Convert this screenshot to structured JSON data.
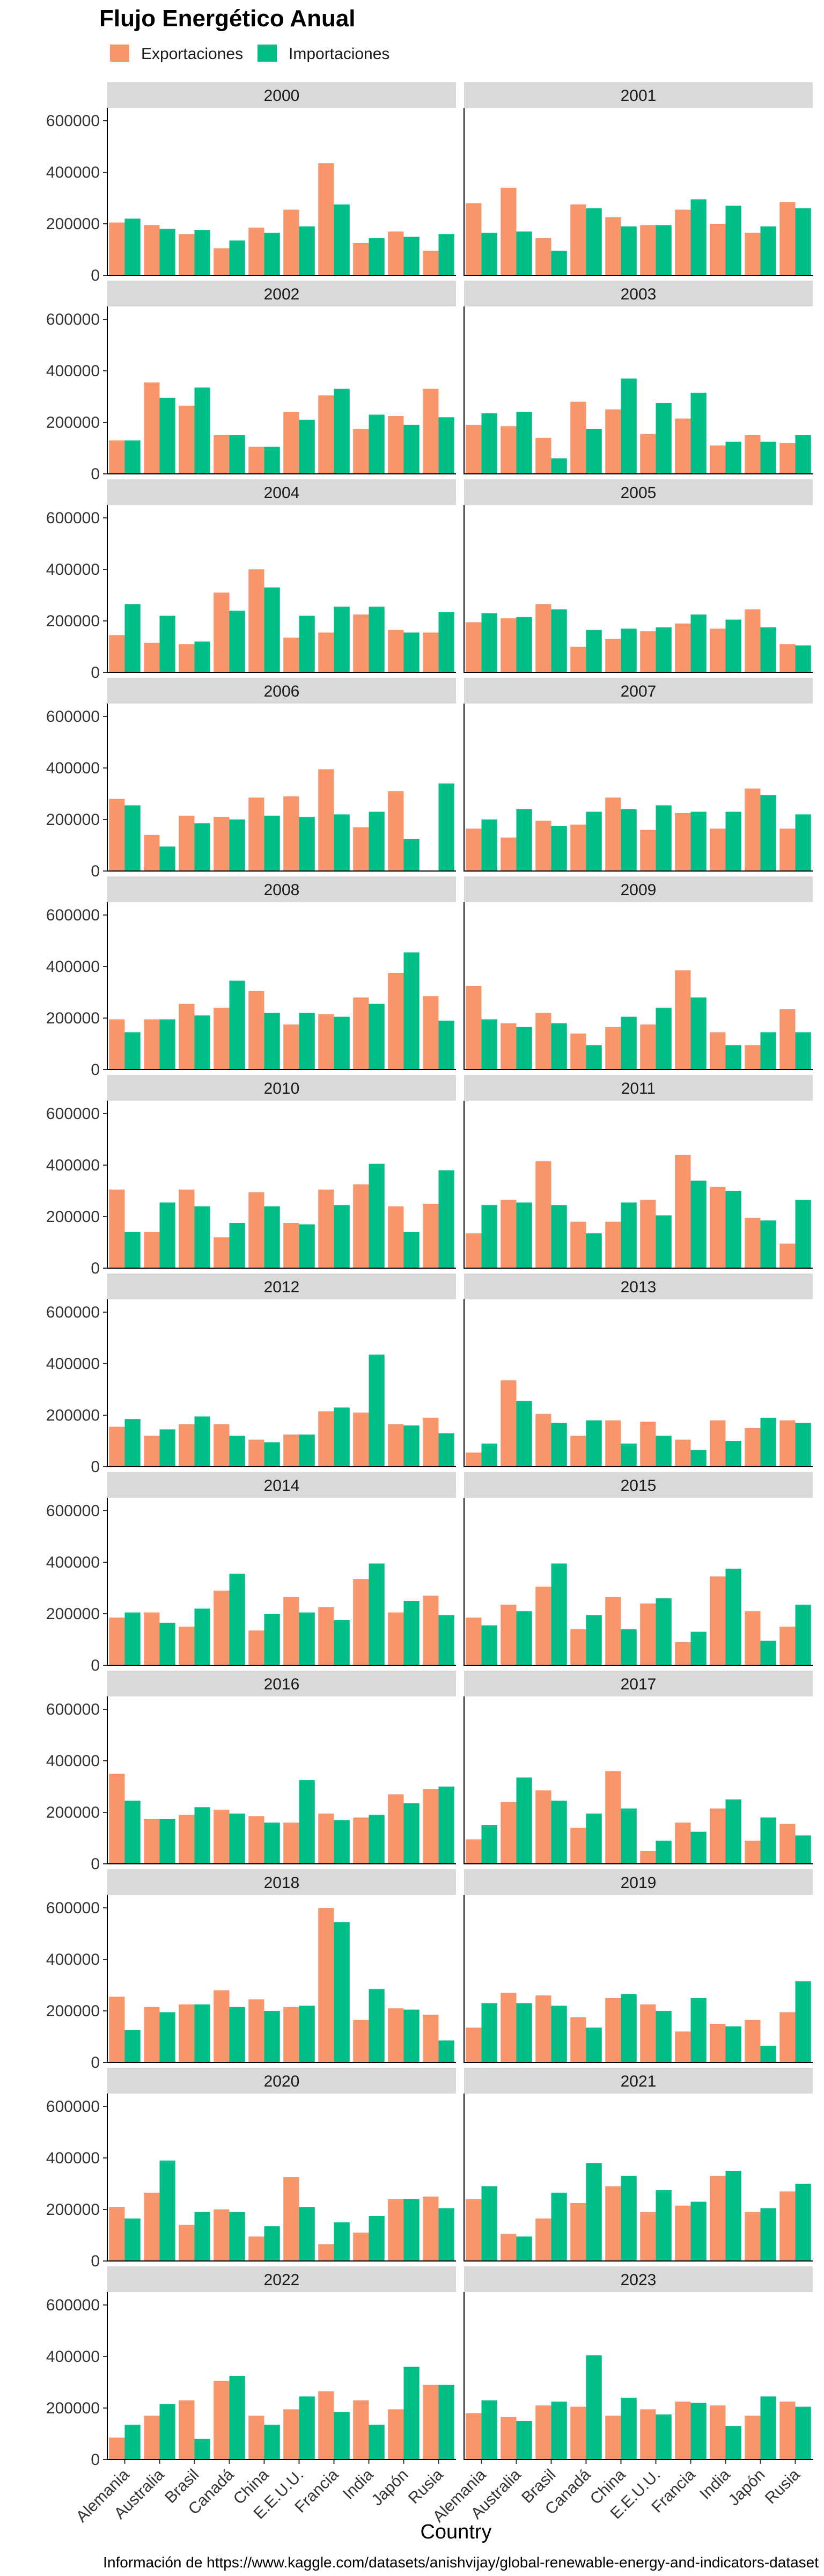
{
  "chart_data": {
    "type": "bar",
    "title": "Flujo Energético Anual",
    "xlabel": "Country",
    "ylabel": "",
    "caption": "Información de https://www.kaggle.com/datasets/anishvijay/global-renewable-energy-and-indicators-dataset",
    "categories": [
      "Alemania",
      "Australia",
      "Brasil",
      "Canadá",
      "China",
      "E.E.U.U.",
      "Francia",
      "India",
      "Japón",
      "Rusia"
    ],
    "ylim": [
      0,
      650000
    ],
    "yticks": [
      0,
      200000,
      400000,
      600000
    ],
    "ytick_labels": [
      "0",
      "200000",
      "400000",
      "600000"
    ],
    "legend": {
      "position": "top-left",
      "labels": [
        "Exportaciones",
        "Importaciones"
      ]
    },
    "colors": {
      "Exportaciones": "#f8956b",
      "Importaciones": "#00be88"
    },
    "grid": false,
    "facets": [
      {
        "label": "2000",
        "series": [
          {
            "name": "Exportaciones",
            "values": [
              205000,
              195000,
              160000,
              105000,
              185000,
              255000,
              435000,
              125000,
              170000,
              95000
            ]
          },
          {
            "name": "Importaciones",
            "values": [
              220000,
              180000,
              175000,
              135000,
              165000,
              190000,
              275000,
              145000,
              150000,
              160000
            ]
          }
        ]
      },
      {
        "label": "2001",
        "series": [
          {
            "name": "Exportaciones",
            "values": [
              280000,
              340000,
              145000,
              275000,
              225000,
              195000,
              255000,
              200000,
              165000,
              285000
            ]
          },
          {
            "name": "Importaciones",
            "values": [
              165000,
              170000,
              95000,
              260000,
              190000,
              195000,
              295000,
              270000,
              190000,
              260000
            ]
          }
        ]
      },
      {
        "label": "2002",
        "series": [
          {
            "name": "Exportaciones",
            "values": [
              130000,
              355000,
              265000,
              150000,
              105000,
              240000,
              305000,
              175000,
              225000,
              330000
            ]
          },
          {
            "name": "Importaciones",
            "values": [
              130000,
              295000,
              335000,
              150000,
              105000,
              210000,
              330000,
              230000,
              190000,
              220000
            ]
          }
        ]
      },
      {
        "label": "2003",
        "series": [
          {
            "name": "Exportaciones",
            "values": [
              190000,
              185000,
              140000,
              280000,
              250000,
              155000,
              215000,
              110000,
              150000,
              120000
            ]
          },
          {
            "name": "Importaciones",
            "values": [
              235000,
              240000,
              60000,
              175000,
              370000,
              275000,
              315000,
              125000,
              125000,
              150000
            ]
          }
        ]
      },
      {
        "label": "2004",
        "series": [
          {
            "name": "Exportaciones",
            "values": [
              145000,
              115000,
              110000,
              310000,
              400000,
              135000,
              155000,
              225000,
              165000,
              155000
            ]
          },
          {
            "name": "Importaciones",
            "values": [
              265000,
              220000,
              120000,
              240000,
              330000,
              220000,
              255000,
              255000,
              155000,
              235000
            ]
          }
        ]
      },
      {
        "label": "2005",
        "series": [
          {
            "name": "Exportaciones",
            "values": [
              195000,
              210000,
              265000,
              100000,
              130000,
              160000,
              190000,
              170000,
              245000,
              110000
            ]
          },
          {
            "name": "Importaciones",
            "values": [
              230000,
              215000,
              245000,
              165000,
              170000,
              175000,
              225000,
              205000,
              175000,
              105000
            ]
          }
        ]
      },
      {
        "label": "2006",
        "series": [
          {
            "name": "Exportaciones",
            "values": [
              280000,
              140000,
              215000,
              210000,
              285000,
              290000,
              395000,
              170000,
              310000,
              0
            ]
          },
          {
            "name": "Importaciones",
            "values": [
              255000,
              95000,
              185000,
              200000,
              215000,
              210000,
              220000,
              230000,
              125000,
              340000
            ]
          }
        ]
      },
      {
        "label": "2007",
        "series": [
          {
            "name": "Exportaciones",
            "values": [
              165000,
              130000,
              195000,
              180000,
              285000,
              160000,
              225000,
              165000,
              320000,
              165000
            ]
          },
          {
            "name": "Importaciones",
            "values": [
              200000,
              240000,
              175000,
              230000,
              240000,
              255000,
              230000,
              230000,
              295000,
              220000
            ]
          }
        ]
      },
      {
        "label": "2008",
        "series": [
          {
            "name": "Exportaciones",
            "values": [
              195000,
              195000,
              255000,
              240000,
              305000,
              175000,
              215000,
              280000,
              375000,
              285000
            ]
          },
          {
            "name": "Importaciones",
            "values": [
              145000,
              195000,
              210000,
              345000,
              220000,
              220000,
              205000,
              255000,
              455000,
              190000
            ]
          }
        ]
      },
      {
        "label": "2009",
        "series": [
          {
            "name": "Exportaciones",
            "values": [
              325000,
              180000,
              220000,
              140000,
              165000,
              175000,
              385000,
              145000,
              95000,
              235000
            ]
          },
          {
            "name": "Importaciones",
            "values": [
              195000,
              165000,
              180000,
              95000,
              205000,
              240000,
              280000,
              95000,
              145000,
              145000
            ]
          }
        ]
      },
      {
        "label": "2010",
        "series": [
          {
            "name": "Exportaciones",
            "values": [
              305000,
              140000,
              305000,
              120000,
              295000,
              175000,
              305000,
              325000,
              240000,
              250000
            ]
          },
          {
            "name": "Importaciones",
            "values": [
              140000,
              255000,
              240000,
              175000,
              240000,
              170000,
              245000,
              405000,
              140000,
              380000
            ]
          }
        ]
      },
      {
        "label": "2011",
        "series": [
          {
            "name": "Exportaciones",
            "values": [
              135000,
              265000,
              415000,
              180000,
              180000,
              265000,
              440000,
              315000,
              195000,
              95000
            ]
          },
          {
            "name": "Importaciones",
            "values": [
              245000,
              255000,
              245000,
              135000,
              255000,
              205000,
              340000,
              300000,
              185000,
              265000
            ]
          }
        ]
      },
      {
        "label": "2012",
        "series": [
          {
            "name": "Exportaciones",
            "values": [
              155000,
              120000,
              165000,
              165000,
              105000,
              125000,
              215000,
              210000,
              165000,
              190000
            ]
          },
          {
            "name": "Importaciones",
            "values": [
              185000,
              145000,
              195000,
              120000,
              95000,
              125000,
              230000,
              435000,
              160000,
              130000
            ]
          }
        ]
      },
      {
        "label": "2013",
        "series": [
          {
            "name": "Exportaciones",
            "values": [
              55000,
              335000,
              205000,
              120000,
              180000,
              175000,
              105000,
              180000,
              150000,
              180000
            ]
          },
          {
            "name": "Importaciones",
            "values": [
              90000,
              255000,
              170000,
              180000,
              90000,
              120000,
              65000,
              100000,
              190000,
              170000
            ]
          }
        ]
      },
      {
        "label": "2014",
        "series": [
          {
            "name": "Exportaciones",
            "values": [
              185000,
              205000,
              150000,
              290000,
              135000,
              265000,
              225000,
              335000,
              205000,
              270000
            ]
          },
          {
            "name": "Importaciones",
            "values": [
              205000,
              165000,
              220000,
              355000,
              200000,
              205000,
              175000,
              395000,
              250000,
              195000
            ]
          }
        ]
      },
      {
        "label": "2015",
        "series": [
          {
            "name": "Exportaciones",
            "values": [
              185000,
              235000,
              305000,
              140000,
              265000,
              240000,
              90000,
              345000,
              210000,
              150000
            ]
          },
          {
            "name": "Importaciones",
            "values": [
              155000,
              210000,
              395000,
              195000,
              140000,
              260000,
              130000,
              375000,
              95000,
              235000
            ]
          }
        ]
      },
      {
        "label": "2016",
        "series": [
          {
            "name": "Exportaciones",
            "values": [
              350000,
              175000,
              190000,
              210000,
              185000,
              160000,
              195000,
              180000,
              270000,
              290000
            ]
          },
          {
            "name": "Importaciones",
            "values": [
              245000,
              175000,
              220000,
              195000,
              160000,
              325000,
              170000,
              190000,
              235000,
              300000
            ]
          }
        ]
      },
      {
        "label": "2017",
        "series": [
          {
            "name": "Exportaciones",
            "values": [
              95000,
              240000,
              285000,
              140000,
              360000,
              50000,
              160000,
              215000,
              90000,
              155000
            ]
          },
          {
            "name": "Importaciones",
            "values": [
              150000,
              335000,
              245000,
              195000,
              215000,
              90000,
              125000,
              250000,
              180000,
              110000
            ]
          }
        ]
      },
      {
        "label": "2018",
        "series": [
          {
            "name": "Exportaciones",
            "values": [
              255000,
              215000,
              225000,
              280000,
              245000,
              215000,
              600000,
              165000,
              210000,
              185000
            ]
          },
          {
            "name": "Importaciones",
            "values": [
              125000,
              195000,
              225000,
              215000,
              200000,
              220000,
              545000,
              285000,
              205000,
              85000
            ]
          }
        ]
      },
      {
        "label": "2019",
        "series": [
          {
            "name": "Exportaciones",
            "values": [
              135000,
              270000,
              260000,
              175000,
              250000,
              225000,
              120000,
              150000,
              165000,
              195000
            ]
          },
          {
            "name": "Importaciones",
            "values": [
              230000,
              230000,
              220000,
              135000,
              265000,
              200000,
              250000,
              140000,
              65000,
              315000
            ]
          }
        ]
      },
      {
        "label": "2020",
        "series": [
          {
            "name": "Exportaciones",
            "values": [
              210000,
              265000,
              140000,
              200000,
              95000,
              325000,
              65000,
              110000,
              240000,
              250000
            ]
          },
          {
            "name": "Importaciones",
            "values": [
              165000,
              390000,
              190000,
              190000,
              135000,
              210000,
              150000,
              175000,
              240000,
              205000
            ]
          }
        ]
      },
      {
        "label": "2021",
        "series": [
          {
            "name": "Exportaciones",
            "values": [
              240000,
              105000,
              165000,
              225000,
              290000,
              190000,
              215000,
              330000,
              190000,
              270000
            ]
          },
          {
            "name": "Importaciones",
            "values": [
              290000,
              95000,
              265000,
              380000,
              330000,
              275000,
              230000,
              350000,
              205000,
              300000
            ]
          }
        ]
      },
      {
        "label": "2022",
        "series": [
          {
            "name": "Exportaciones",
            "values": [
              85000,
              170000,
              230000,
              305000,
              170000,
              195000,
              265000,
              230000,
              195000,
              290000
            ]
          },
          {
            "name": "Importaciones",
            "values": [
              135000,
              215000,
              80000,
              325000,
              135000,
              245000,
              185000,
              135000,
              360000,
              290000
            ]
          }
        ]
      },
      {
        "label": "2023",
        "series": [
          {
            "name": "Exportaciones",
            "values": [
              180000,
              165000,
              210000,
              205000,
              170000,
              195000,
              225000,
              210000,
              170000,
              225000
            ]
          },
          {
            "name": "Importaciones",
            "values": [
              230000,
              150000,
              225000,
              405000,
              240000,
              175000,
              220000,
              130000,
              245000,
              205000
            ]
          }
        ]
      }
    ]
  }
}
